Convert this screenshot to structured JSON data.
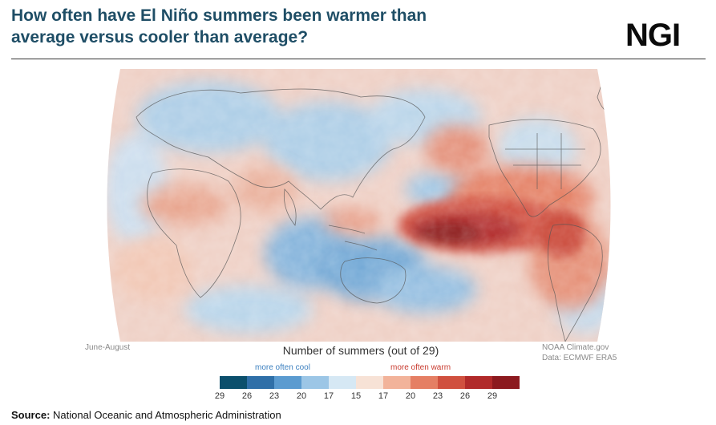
{
  "header": {
    "title_line1": "How often have El Niño summers been warmer than",
    "title_line2": "average versus cooler than average?",
    "logo_text": "NGI"
  },
  "map": {
    "season_label": "June-August",
    "credit_line1": "NOAA Climate.gov",
    "credit_line2": "Data: ECMWF ERA5"
  },
  "legend": {
    "title": "Number of summers (out of 29)",
    "cool_label": "more often cool",
    "warm_label": "more often warm",
    "ticks": [
      "29",
      "26",
      "23",
      "20",
      "17",
      "15",
      "17",
      "20",
      "23",
      "26",
      "29"
    ],
    "colors": [
      "#0b4f6c",
      "#2f6fa8",
      "#5b9bd0",
      "#9cc6e6",
      "#d6e8f4",
      "#f7e2d6",
      "#f2b39a",
      "#e57f64",
      "#d0503f",
      "#b12a2a",
      "#8c1a1f"
    ]
  },
  "footer": {
    "source_label": "Source:",
    "source_text": " National Oceanic and Atmospheric Administration"
  }
}
